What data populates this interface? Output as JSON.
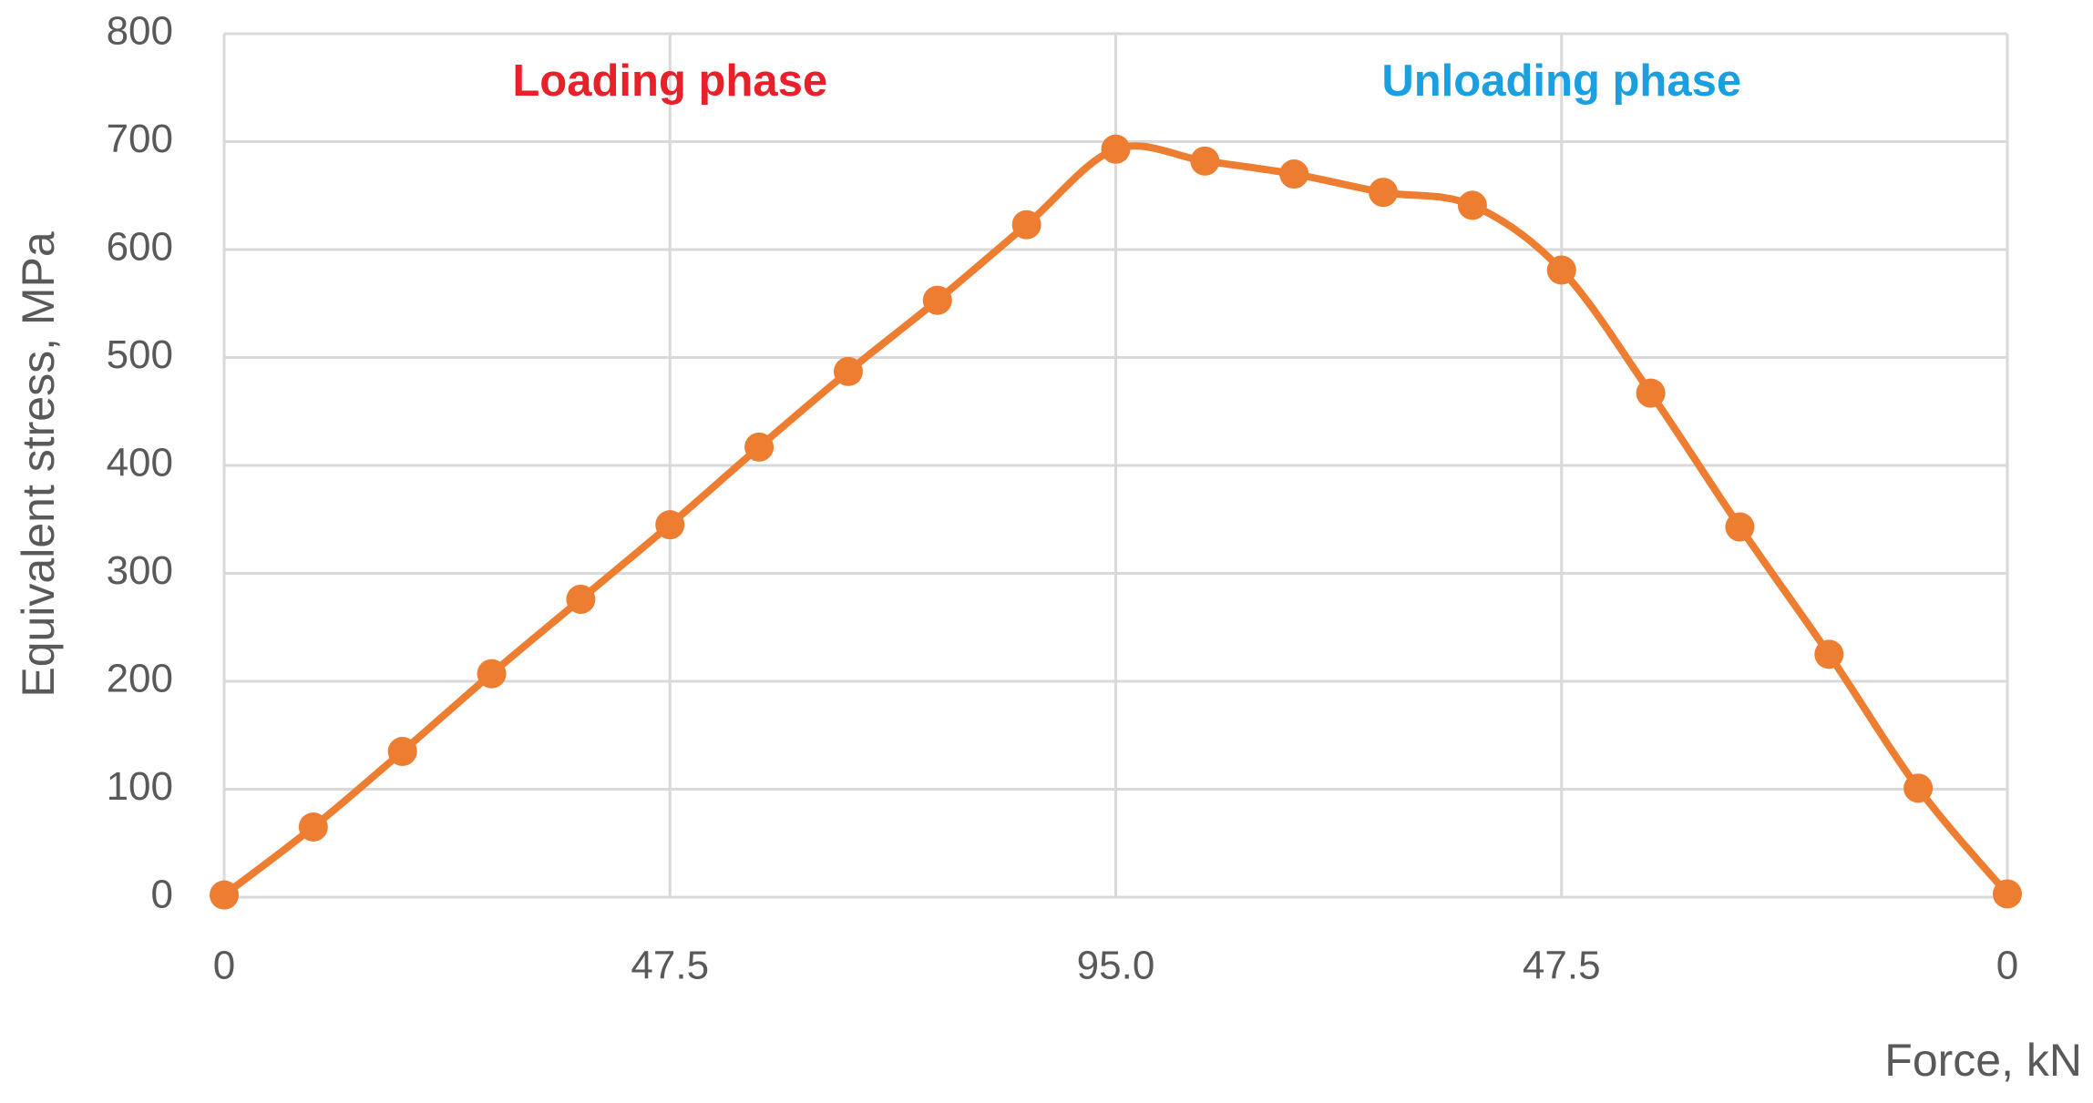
{
  "chart_data": {
    "type": "line",
    "x_label": "Force, kN",
    "y_label": "Equivalent stress, MPa",
    "annotations": [
      {
        "text": "Loading phase",
        "color": "#e8202a"
      },
      {
        "text": "Unloading phase",
        "color": "#1a9fe0"
      }
    ],
    "categories": [
      "0",
      null,
      null,
      null,
      null,
      "47.5",
      null,
      null,
      null,
      null,
      "95.0",
      null,
      null,
      null,
      null,
      "47.5",
      null,
      null,
      null,
      null,
      "0"
    ],
    "values": [
      2,
      65,
      135,
      207,
      276,
      345,
      417,
      487,
      553,
      623,
      693,
      682,
      670,
      653,
      641,
      581,
      467,
      343,
      225,
      101,
      3
    ],
    "color": "#ed7d31",
    "ylim": [
      0,
      800
    ],
    "yticks": [
      0,
      100,
      200,
      300,
      400,
      500,
      600,
      700,
      800
    ],
    "grid": true,
    "smooth": true,
    "markers": true
  }
}
